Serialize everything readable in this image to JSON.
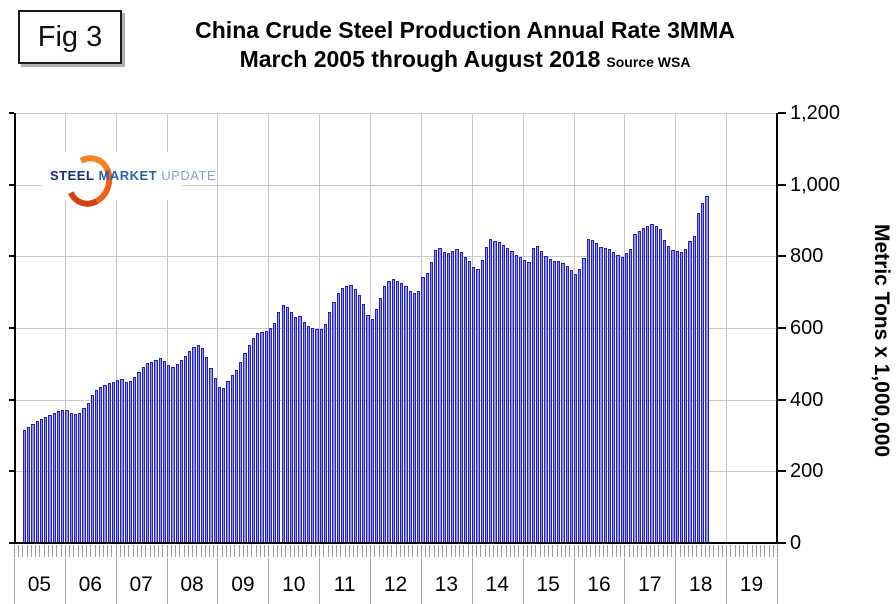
{
  "figure_label": "Fig 3",
  "title": {
    "line1": "China Crude Steel Production Annual Rate 3MMA",
    "line2": "March 2005 through August 2018",
    "source": "Source WSA"
  },
  "logo": {
    "steel": "STEEL",
    "market": "MARKET",
    "update": "UPDATE"
  },
  "y_axis": {
    "title": "Metric Tons x 1,000,000",
    "tick_labels": [
      "0",
      "200",
      "400",
      "600",
      "800",
      "1,000",
      "1,200"
    ],
    "min": 0,
    "max": 1200,
    "step": 200
  },
  "x_axis": {
    "year_labels": [
      "05",
      "06",
      "07",
      "08",
      "09",
      "10",
      "11",
      "12",
      "13",
      "14",
      "15",
      "16",
      "17",
      "18",
      "19"
    ],
    "months_per_year": 12
  },
  "colors": {
    "bar_edge": "#2222bb",
    "bar_center": "#9090f6",
    "grid": "#c9c9c9",
    "axis": "#000000",
    "minor_tick": "#999999",
    "logo_orange": "#ee5f17",
    "logo_navy": "#14317e",
    "logo_blue": "#2b62ae",
    "logo_light_blue": "#7fa4cf"
  },
  "chart_data": {
    "type": "bar",
    "title": "China Crude Steel Production Annual Rate 3MMA",
    "subtitle": "March 2005 through August 2018",
    "source": "WSA",
    "ylabel": "Metric Tons x 1,000,000",
    "ylim": [
      0,
      1200
    ],
    "grid": true,
    "frequency": "monthly",
    "x_start": "2005-03",
    "x_end": "2018-08",
    "values": [
      315,
      323,
      332,
      341,
      347,
      352,
      357,
      362,
      367,
      371,
      372,
      363,
      359,
      362,
      376,
      390,
      412,
      426,
      435,
      440,
      446,
      449,
      454,
      457,
      449,
      451,
      463,
      477,
      490,
      501,
      506,
      511,
      515,
      507,
      498,
      492,
      500,
      511,
      523,
      537,
      548,
      552,
      544,
      519,
      488,
      461,
      435,
      432,
      452,
      468,
      483,
      505,
      529,
      552,
      571,
      585,
      589,
      593,
      599,
      614,
      644,
      664,
      658,
      646,
      632,
      634,
      616,
      606,
      599,
      597,
      598,
      610,
      645,
      673,
      699,
      712,
      716,
      719,
      709,
      693,
      668,
      637,
      626,
      652,
      683,
      716,
      730,
      736,
      731,
      725,
      716,
      704,
      699,
      703,
      742,
      753,
      784,
      817,
      822,
      812,
      808,
      814,
      820,
      812,
      797,
      787,
      770,
      764,
      790,
      826,
      848,
      843,
      840,
      833,
      824,
      815,
      804,
      799,
      789,
      783,
      822,
      830,
      814,
      800,
      793,
      788,
      786,
      781,
      773,
      761,
      751,
      766,
      794,
      849,
      845,
      836,
      825,
      822,
      821,
      811,
      803,
      797,
      808,
      821,
      861,
      872,
      879,
      886,
      890,
      885,
      876,
      845,
      830,
      817,
      815,
      812,
      821,
      843,
      857,
      921,
      949,
      969
    ]
  }
}
